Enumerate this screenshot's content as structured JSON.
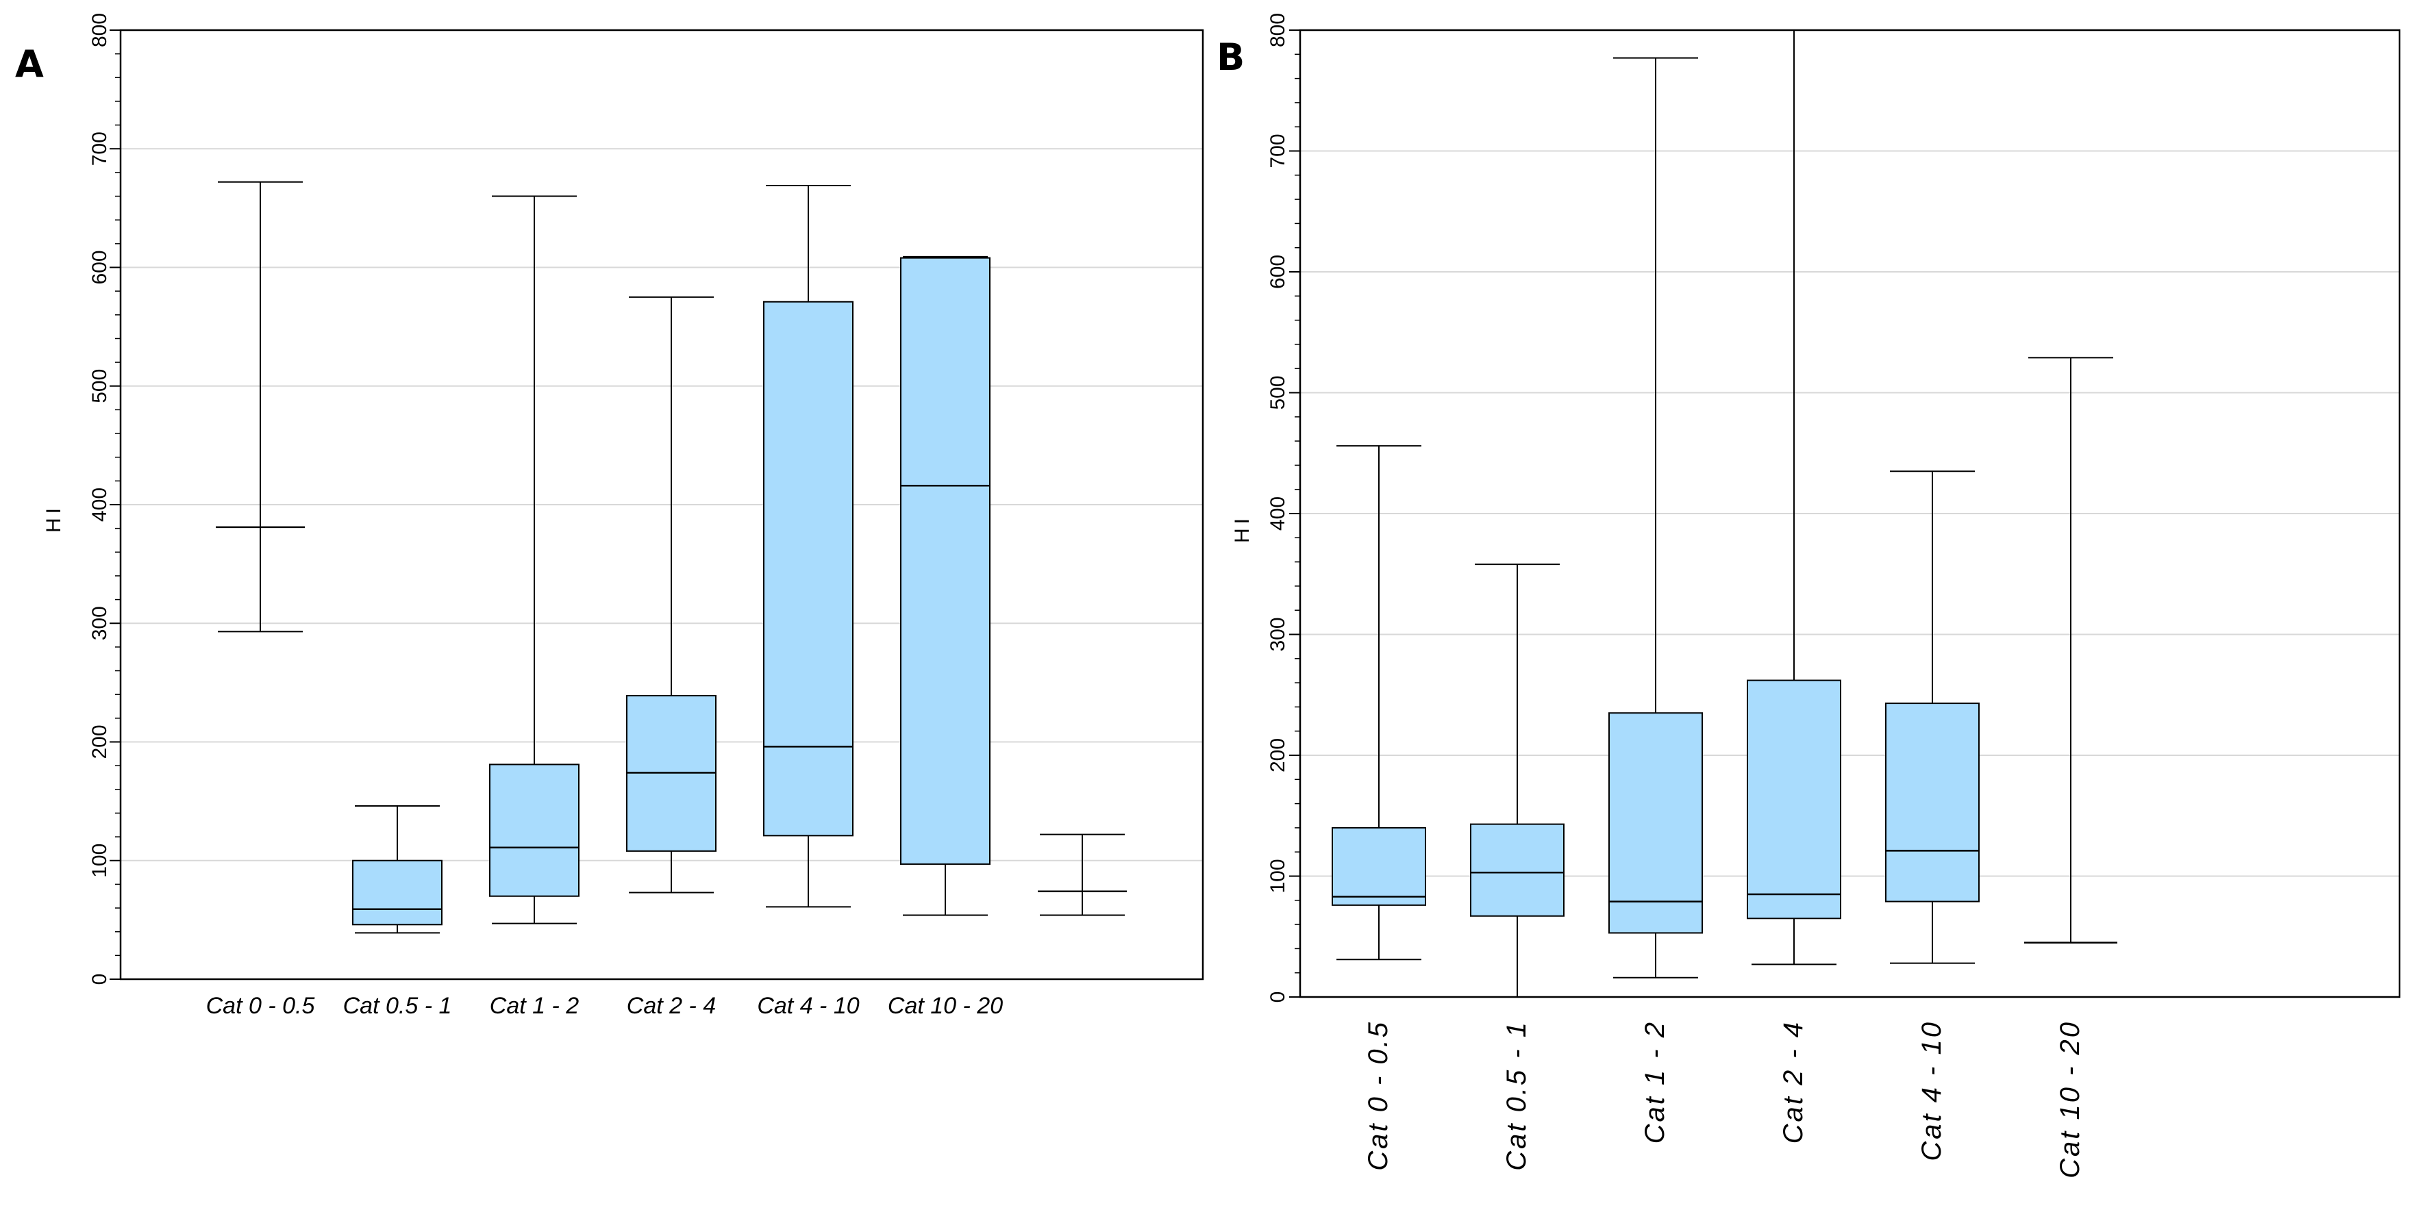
{
  "panels": [
    {
      "letter": "A"
    },
    {
      "letter": "B"
    }
  ],
  "chart_data": [
    {
      "type": "box",
      "panel": "A",
      "title": "",
      "xlabel": "",
      "ylabel": "HI",
      "ylim": [
        0,
        800
      ],
      "yticks": [
        0,
        100,
        200,
        300,
        400,
        500,
        600,
        700,
        800
      ],
      "grid": true,
      "tick_label_rotation": "vertical",
      "categories": [
        "Cat 0 - 0.5",
        "Cat 0.5 - 1",
        "Cat 1 - 2",
        "Cat 2 - 4",
        "Cat 4 - 10",
        "Cat 10 - 20",
        ""
      ],
      "category_label_rotation": "horizontal",
      "boxes": [
        {
          "whisker_low": 293,
          "q1": 381,
          "median": 381,
          "q3": 381,
          "whisker_high": 672
        },
        {
          "whisker_low": 39,
          "q1": 46,
          "median": 59,
          "q3": 100,
          "whisker_high": 146
        },
        {
          "whisker_low": 47,
          "q1": 70,
          "median": 111,
          "q3": 181,
          "whisker_high": 660
        },
        {
          "whisker_low": 73,
          "q1": 108,
          "median": 174,
          "q3": 239,
          "whisker_high": 575
        },
        {
          "whisker_low": 61,
          "q1": 121,
          "median": 196,
          "q3": 571,
          "whisker_high": 669
        },
        {
          "whisker_low": 54,
          "q1": 97,
          "median": 416,
          "q3": 608,
          "whisker_high": 609
        },
        {
          "whisker_low": 54,
          "q1": 74,
          "median": 74,
          "q3": 74,
          "whisker_high": 122
        }
      ],
      "box_color": "#a9dcfd"
    },
    {
      "type": "box",
      "panel": "B",
      "title": "",
      "xlabel": "",
      "ylabel": "HI",
      "ylim": [
        0,
        800
      ],
      "yticks": [
        0,
        100,
        200,
        300,
        400,
        500,
        600,
        700,
        800
      ],
      "grid": true,
      "categories": [
        "Cat 0 - 0.5",
        "Cat 0.5 - 1",
        "Cat 1 - 2",
        "Cat 2 - 4",
        "Cat 4 - 10",
        "Cat 10 - 20",
        ""
      ],
      "category_label_rotation": "vertical",
      "boxes": [
        {
          "whisker_low": 31,
          "q1": 76,
          "median": 83,
          "q3": 140,
          "whisker_high": 456
        },
        {
          "whisker_low": 0,
          "q1": 67,
          "median": 103,
          "q3": 143,
          "whisker_high": 358
        },
        {
          "whisker_low": 16,
          "q1": 53,
          "median": 79,
          "q3": 235,
          "whisker_high": 777
        },
        {
          "whisker_low": 27,
          "q1": 65,
          "median": 85,
          "q3": 262,
          "whisker_high": 800
        },
        {
          "whisker_low": 28,
          "q1": 79,
          "median": 121,
          "q3": 243,
          "whisker_high": 435
        },
        {
          "whisker_low": 45,
          "q1": 45,
          "median": 45,
          "q3": 45,
          "whisker_high": 529
        },
        null
      ],
      "box_color": "#a9dcfd"
    }
  ]
}
